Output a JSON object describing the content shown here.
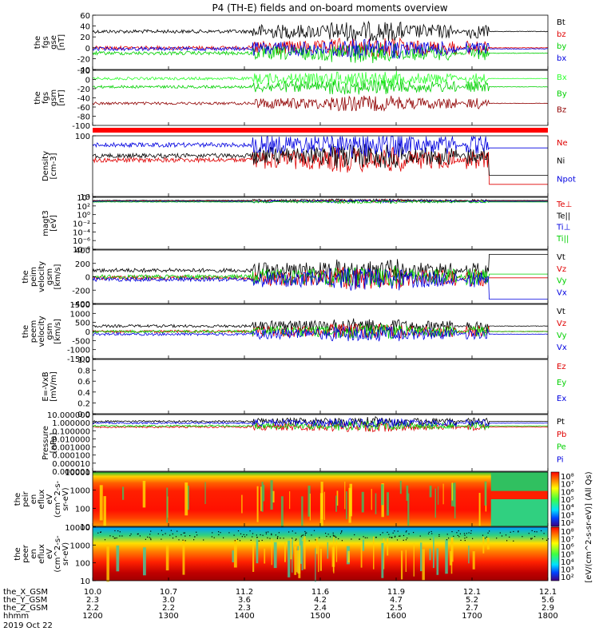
{
  "title": "P4 (TH-E) fields and on-board moments overview",
  "date_label": "2019 Oct 22",
  "x_axis": {
    "rows": [
      {
        "name": "the_X_GSM",
        "values": [
          "10.0",
          "10.7",
          "11.2",
          "11.6",
          "11.9",
          "12.1",
          "12.1"
        ]
      },
      {
        "name": "the_Y_GSM",
        "values": [
          "2.3",
          "3.0",
          "3.6",
          "4.2",
          "4.7",
          "5.2",
          "5.6"
        ]
      },
      {
        "name": "the_Z_GSM",
        "values": [
          "2.2",
          "2.2",
          "2.3",
          "2.4",
          "2.5",
          "2.7",
          "2.9"
        ]
      },
      {
        "name": "hhmm",
        "values": [
          "1200",
          "1300",
          "1400",
          "1500",
          "1600",
          "1700",
          "1800"
        ]
      }
    ]
  },
  "colors": {
    "black": "#000000",
    "red": "#e00000",
    "green": "#00d000",
    "blue": "#0000e0",
    "darkred": "#900000",
    "lime": "#30ff30"
  },
  "spec_colorbar_label": "[eV/(cm^2-s-sr-eV)] (All Qs)",
  "chart_data": [
    {
      "type": "line",
      "id": "p1",
      "ylabel": [
        "the",
        "fgs",
        "gse",
        "[nT]"
      ],
      "ylim": [
        -40,
        60
      ],
      "ticks": [
        "60",
        "40",
        "20",
        "0",
        "-20",
        "-40"
      ],
      "series": [
        {
          "name": "Bt",
          "color": "#000000"
        },
        {
          "name": "bz",
          "color": "#e00000"
        },
        {
          "name": "by",
          "color": "#00d000"
        },
        {
          "name": "bx",
          "color": "#0000e0"
        }
      ]
    },
    {
      "type": "line",
      "id": "p2",
      "ylabel": [
        "the",
        "fgs",
        "gsm",
        "[nT]"
      ],
      "ylim": [
        -100,
        20
      ],
      "ticks": [
        "20",
        "0",
        "-20",
        "-40",
        "-60",
        "-80",
        "-100"
      ],
      "series": [
        {
          "name": "Bx",
          "color": "#30ff30"
        },
        {
          "name": "By",
          "color": "#00d000"
        },
        {
          "name": "Bz",
          "color": "#900000"
        }
      ]
    },
    {
      "type": "line",
      "id": "p3",
      "ylabel": [
        "Density",
        "[cm-3]"
      ],
      "ylim": [
        0.8,
        300
      ],
      "log": true,
      "ticks": [
        "100",
        "10"
      ],
      "series": [
        {
          "name": "Ne",
          "color": "#e00000"
        },
        {
          "name": "Ni",
          "color": "#000000"
        },
        {
          "name": "Npot",
          "color": "#0000e0"
        }
      ]
    },
    {
      "type": "line",
      "id": "p4",
      "ylabel": [
        "magt3",
        "[eV]"
      ],
      "log": true,
      "ticks": [
        "10⁴",
        "10²",
        "10⁰",
        "10⁻²",
        "10⁻⁴",
        "10⁻⁶",
        "10⁻⁸"
      ],
      "series": [
        {
          "name": "Te⊥",
          "color": "#e00000"
        },
        {
          "name": "Te||",
          "color": "#000000"
        },
        {
          "name": "Ti⊥",
          "color": "#0000e0"
        },
        {
          "name": "Ti||",
          "color": "#00d000"
        }
      ]
    },
    {
      "type": "line",
      "id": "p5",
      "ylabel": [
        "the",
        "peim",
        "velocity",
        "gsm",
        "[km/s]"
      ],
      "ylim": [
        -400,
        400
      ],
      "ticks": [
        "400",
        "200",
        "0",
        "-200",
        "-400"
      ],
      "series": [
        {
          "name": "Vt",
          "color": "#000000"
        },
        {
          "name": "Vz",
          "color": "#e00000"
        },
        {
          "name": "Vy",
          "color": "#00d000"
        },
        {
          "name": "Vx",
          "color": "#0000e0"
        }
      ]
    },
    {
      "type": "line",
      "id": "p6",
      "ylabel": [
        "the",
        "peem",
        "velocity",
        "gsm",
        "[km/s]"
      ],
      "ylim": [
        -1500,
        1500
      ],
      "ticks": [
        "1500",
        "1000",
        "500",
        "0",
        "-500",
        "-1000",
        "-1500"
      ],
      "series": [
        {
          "name": "Vt",
          "color": "#000000"
        },
        {
          "name": "Vz",
          "color": "#e00000"
        },
        {
          "name": "Vy",
          "color": "#00d000"
        },
        {
          "name": "Vx",
          "color": "#0000e0"
        }
      ]
    },
    {
      "type": "line",
      "id": "p7",
      "ylabel": [
        "E=-VxB",
        "[mV/m]"
      ],
      "ylim": [
        0,
        1
      ],
      "ticks": [
        "1.0",
        "0.8",
        "0.6",
        "0.4",
        "0.2",
        "0.0"
      ],
      "series": [
        {
          "name": "Ez",
          "color": "#e00000"
        },
        {
          "name": "Ey",
          "color": "#00d000"
        },
        {
          "name": "Ex",
          "color": "#0000e0"
        }
      ]
    },
    {
      "type": "line",
      "id": "p8",
      "ylabel": [
        "Pressure",
        "[nPa]"
      ],
      "log": true,
      "ticks": [
        "10.000000",
        "1.000000",
        "0.100000",
        "0.010000",
        "0.001000",
        "0.000100",
        "0.000010",
        "0.000001"
      ],
      "series": [
        {
          "name": "Pt",
          "color": "#000000"
        },
        {
          "name": "Pb",
          "color": "#e00000"
        },
        {
          "name": "Pe",
          "color": "#00d000"
        },
        {
          "name": "Pi",
          "color": "#0000e0"
        }
      ]
    },
    {
      "type": "heatmap",
      "id": "p9",
      "ylabel": [
        "the",
        "peir",
        "en",
        "eflux",
        "eV",
        "(cm^2-s-",
        "sr-eV)"
      ],
      "log": true,
      "ticks": [
        "10000",
        "1000",
        "100",
        "10"
      ],
      "colorbar_ticks": [
        "10⁸",
        "10⁷",
        "10⁶",
        "10⁵",
        "10⁴",
        "10³",
        "10²"
      ]
    },
    {
      "type": "heatmap",
      "id": "p10",
      "ylabel": [
        "the",
        "peer",
        "en",
        "eflux",
        "eV",
        "(cm^2-s-",
        "sr-eV)"
      ],
      "log": true,
      "ticks": [
        "10000",
        "1000",
        "100",
        "10"
      ],
      "colorbar_ticks": [
        "10⁸",
        "10⁷",
        "10⁶",
        "10⁵",
        "10⁴",
        "10³",
        "10²"
      ]
    }
  ]
}
